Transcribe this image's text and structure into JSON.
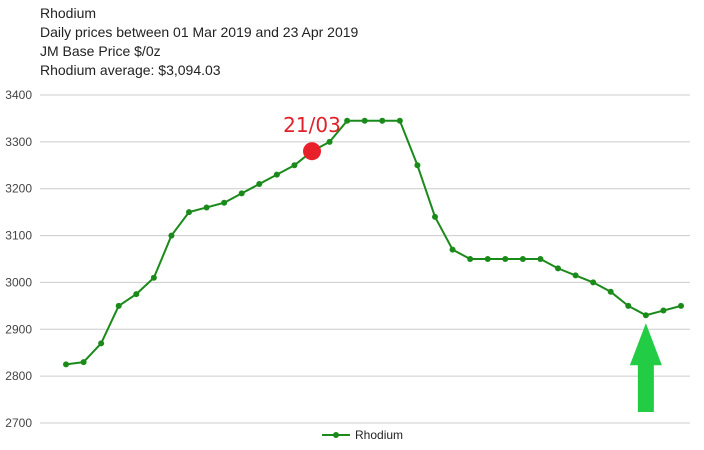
{
  "header": {
    "title": "Rhodium",
    "subtitle": "Daily prices between 01 Mar 2019 and 23 Apr 2019",
    "unit_line": "JM Base Price $/0z",
    "average_line": "Rhodium average: $3,094.03"
  },
  "chart_data": {
    "type": "line",
    "title": "Rhodium",
    "ylim": [
      2700,
      3400
    ],
    "yticks": [
      2700,
      2800,
      2900,
      3000,
      3100,
      3200,
      3300,
      3400
    ],
    "grid": true,
    "legend": "bottom",
    "series": [
      {
        "name": "Rhodium",
        "color": "#1a8a1a",
        "values": [
          2825,
          2830,
          2870,
          2950,
          2975,
          3010,
          3100,
          3150,
          3160,
          3170,
          3190,
          3210,
          3230,
          3250,
          3280,
          3300,
          3345,
          3345,
          3345,
          3345,
          3250,
          3140,
          3070,
          3050,
          3050,
          3050,
          3050,
          3050,
          3030,
          3015,
          3000,
          2980,
          2950,
          2930,
          2940,
          2950
        ]
      }
    ],
    "annotations": [
      {
        "label": "21/03",
        "point_index": 14,
        "marker_color": "#e8202a"
      },
      {
        "arrow_point_index": 33,
        "arrow_color": "#22cc44"
      }
    ]
  }
}
